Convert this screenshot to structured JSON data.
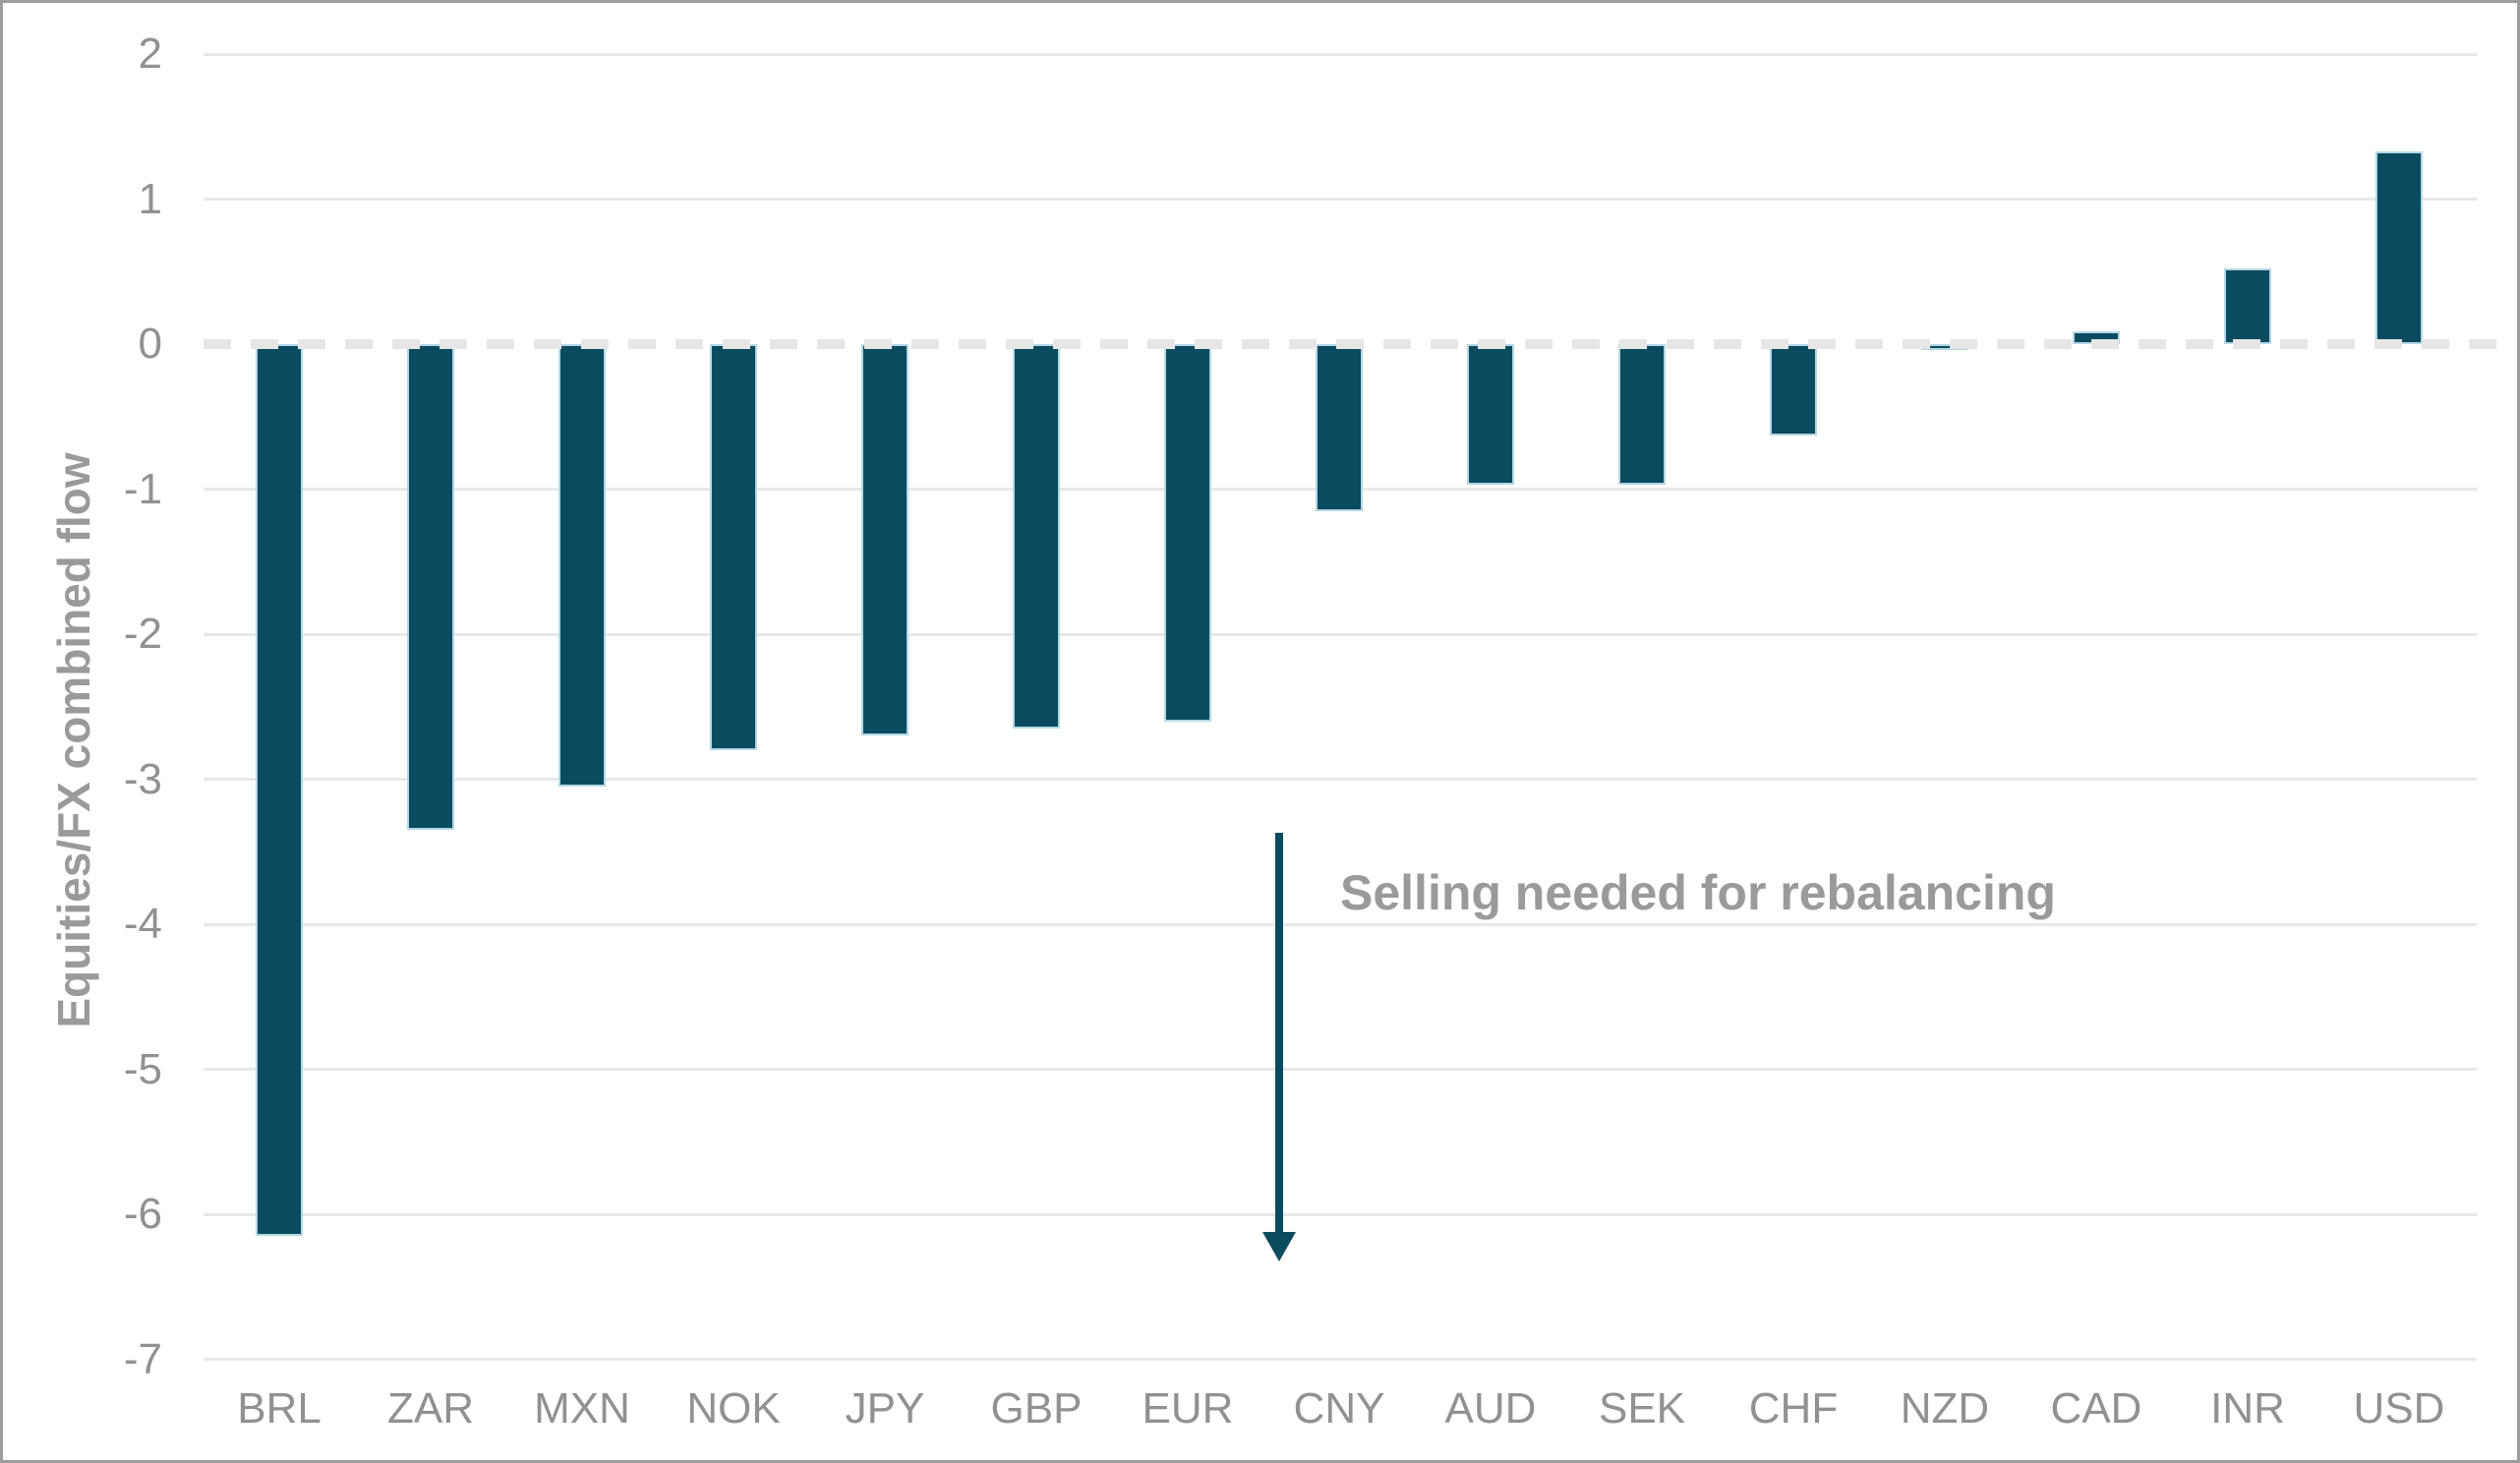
{
  "chart_data": {
    "type": "bar",
    "title": "",
    "ylabel": "Equities/FX combined flow",
    "xlabel": "",
    "categories": [
      "BRL",
      "ZAR",
      "MXN",
      "NOK",
      "JPY",
      "GBP",
      "EUR",
      "CNY",
      "AUD",
      "SEK",
      "CHF",
      "NZD",
      "CAD",
      "INR",
      "USD"
    ],
    "values": [
      -6.15,
      -3.35,
      -3.05,
      -2.8,
      -2.7,
      -2.65,
      -2.6,
      -1.15,
      -0.97,
      -0.97,
      -0.63,
      -0.04,
      0.09,
      0.52,
      1.33
    ],
    "ylim": [
      -7,
      2
    ],
    "yticks": [
      2,
      1,
      0,
      -1,
      -2,
      -3,
      -4,
      -5,
      -6,
      -7
    ],
    "grid": "horizontal",
    "zero_line_style": "thick-dashed",
    "legend_position": "none",
    "annotation": {
      "text": "Selling needed for rebalancing",
      "arrow_direction": "down"
    },
    "colors": {
      "bar": "#0a4b60",
      "bar_outline": "#b5d7e5",
      "grid": "#e8e8e8",
      "zero_dash": "#e6e6e6",
      "tick_text": "#919191",
      "axis_title_text": "#9a9a9a",
      "annotation_text": "#9a9a9a",
      "arrow": "#0a4b60",
      "frame_border": "#9e9e9e"
    }
  }
}
